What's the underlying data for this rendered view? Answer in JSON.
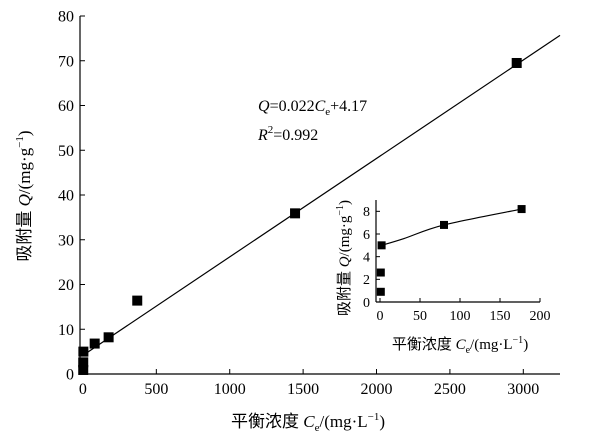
{
  "chart_data": [
    {
      "type": "scatter",
      "xlabel": {
        "prefix": "平衡浓度 ",
        "var": "C",
        "sub": "e",
        "unit": "/(mg·L",
        "sup": "−1",
        "close": ")"
      },
      "ylabel": {
        "prefix": "吸附量 ",
        "var": "Q",
        "unit": "/(mg·g",
        "sup": "−1",
        "close": ")"
      },
      "xlim": [
        -20,
        3250
      ],
      "ylim": [
        0,
        80
      ],
      "xticks": [
        0,
        500,
        1000,
        1500,
        2000,
        2500,
        3000
      ],
      "yticks": [
        0,
        10,
        20,
        30,
        40,
        50,
        60,
        70,
        80
      ],
      "series": [
        {
          "points": [
            {
              "x": 2,
              "y": 0.9
            },
            {
              "x": 2,
              "y": 2.6
            },
            {
              "x": 3,
              "y": 5.0
            },
            {
              "x": 80,
              "y": 6.8
            },
            {
              "x": 175,
              "y": 8.2
            },
            {
              "x": 370,
              "y": 16.4
            },
            {
              "x": 1445,
              "y": 35.9
            },
            {
              "x": 2955,
              "y": 69.5
            }
          ]
        }
      ],
      "fit": {
        "slope": 0.022,
        "intercept": 4.17,
        "x_range": [
          0,
          3250
        ]
      },
      "annotation": {
        "equation": {
          "q": "Q",
          "eq": "=0.022",
          "c": "C",
          "c_sub": "e",
          "rest": "+4.17"
        },
        "r2": {
          "r": "R",
          "sup": "2",
          "val": "=0.992"
        }
      }
    },
    {
      "type": "line",
      "xlabel": {
        "prefix": "平衡浓度 ",
        "var": "C",
        "sub": "e",
        "unit": "/(mg·L",
        "sup": "−1",
        "close": ")"
      },
      "ylabel": {
        "prefix": "吸附量 ",
        "var": "Q",
        "unit": "/(mg·g",
        "sup": "−1",
        "close": ")"
      },
      "xlim": [
        -5,
        200
      ],
      "ylim": [
        0,
        9
      ],
      "xticks": [
        0,
        50,
        100,
        150,
        200
      ],
      "yticks": [
        0,
        2,
        4,
        6,
        8
      ],
      "series": [
        {
          "points": [
            {
              "x": 1,
              "y": 0.9
            },
            {
              "x": 1,
              "y": 2.6
            },
            {
              "x": 2,
              "y": 5.0
            },
            {
              "x": 80,
              "y": 6.8
            },
            {
              "x": 177,
              "y": 8.2
            }
          ]
        }
      ],
      "curve": [
        [
          2,
          5.0
        ],
        [
          30,
          5.6
        ],
        [
          80,
          6.8
        ],
        [
          177,
          8.2
        ]
      ]
    }
  ]
}
